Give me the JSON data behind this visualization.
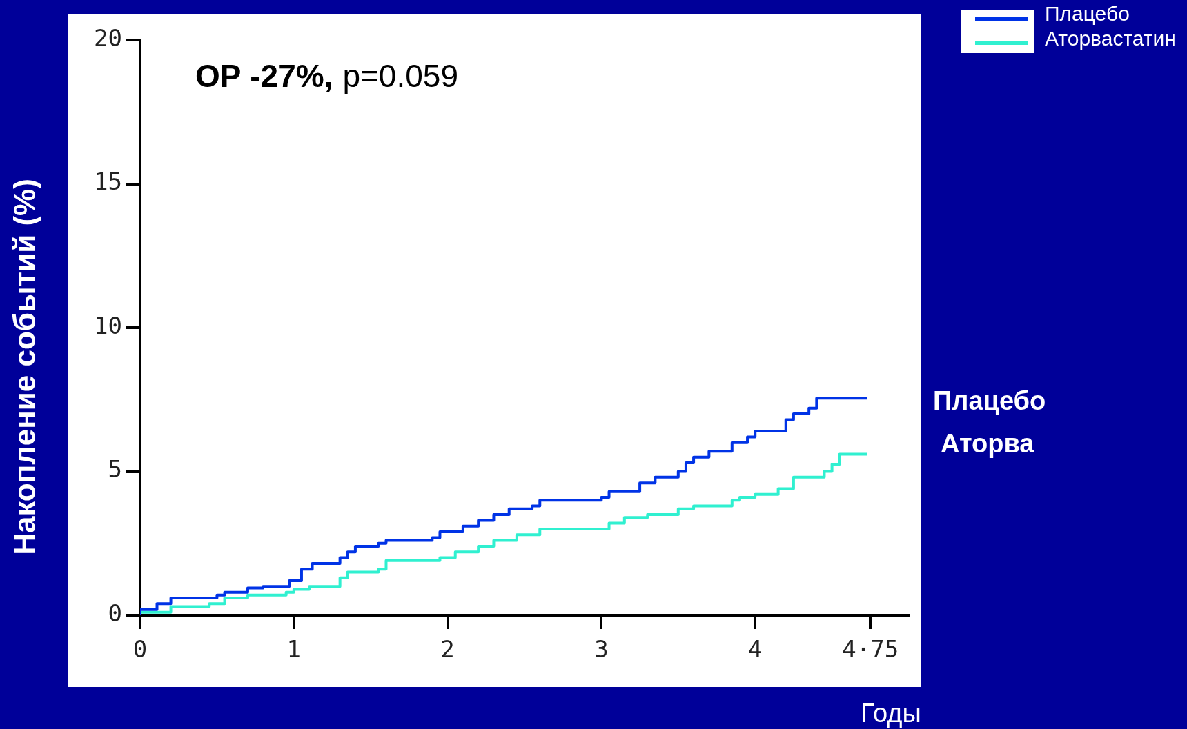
{
  "chart_data": {
    "type": "step",
    "xlabel": "Годы",
    "ylabel": "Накопление событий (%)",
    "xlim": [
      0,
      5
    ],
    "xticks": [
      0,
      1,
      2,
      3,
      4,
      {
        "value": 4.75,
        "label": "4·75"
      }
    ],
    "ylim": [
      0,
      20
    ],
    "yticks": [
      0,
      5,
      10,
      15,
      20
    ],
    "grid": false,
    "legend": "top right",
    "marker": "none",
    "line_style": "solid",
    "annotations": [
      "ОР -27%,",
      "p=0.059",
      "Плацебо",
      "Аторва"
    ],
    "series": [
      {
        "name": "Плацебо",
        "color": "#0033e6",
        "x": [
          0,
          0.11,
          0.2,
          0.5,
          0.55,
          0.7,
          0.8,
          0.97,
          1.05,
          1.12,
          1.3,
          1.35,
          1.4,
          1.55,
          1.6,
          1.9,
          1.95,
          2.1,
          2.2,
          2.3,
          2.4,
          2.55,
          2.6,
          3.0,
          3.05,
          3.25,
          3.35,
          3.5,
          3.55,
          3.6,
          3.7,
          3.85,
          3.95,
          4.0,
          4.2,
          4.25,
          4.35,
          4.4,
          4.65,
          4.73
        ],
        "values": [
          0,
          0.2,
          0.4,
          0.6,
          0.7,
          0.8,
          0.95,
          1.0,
          1.2,
          1.6,
          1.8,
          2.0,
          2.2,
          2.4,
          2.5,
          2.6,
          2.7,
          2.9,
          3.1,
          3.3,
          3.5,
          3.7,
          3.8,
          4.0,
          4.1,
          4.3,
          4.6,
          4.8,
          5.0,
          5.3,
          5.5,
          5.7,
          6.0,
          6.2,
          6.4,
          6.8,
          7.0,
          7.2,
          7.55,
          7.55
        ]
      },
      {
        "name": "Аторвастатин",
        "color": "#30f0d0",
        "x": [
          0,
          0.2,
          0.45,
          0.55,
          0.7,
          0.95,
          1.0,
          1.1,
          1.3,
          1.35,
          1.55,
          1.6,
          1.95,
          2.05,
          2.2,
          2.3,
          2.45,
          2.6,
          3.05,
          3.15,
          3.3,
          3.5,
          3.6,
          3.85,
          3.9,
          4.0,
          4.15,
          4.25,
          4.45,
          4.5,
          4.55,
          4.65,
          4.73
        ],
        "values": [
          0,
          0.1,
          0.3,
          0.4,
          0.6,
          0.7,
          0.8,
          0.9,
          1.0,
          1.3,
          1.5,
          1.6,
          1.9,
          2.0,
          2.2,
          2.4,
          2.6,
          2.8,
          3.0,
          3.2,
          3.4,
          3.5,
          3.7,
          3.8,
          4.0,
          4.1,
          4.2,
          4.4,
          4.8,
          5.0,
          5.25,
          5.6,
          5.6
        ]
      }
    ]
  }
}
